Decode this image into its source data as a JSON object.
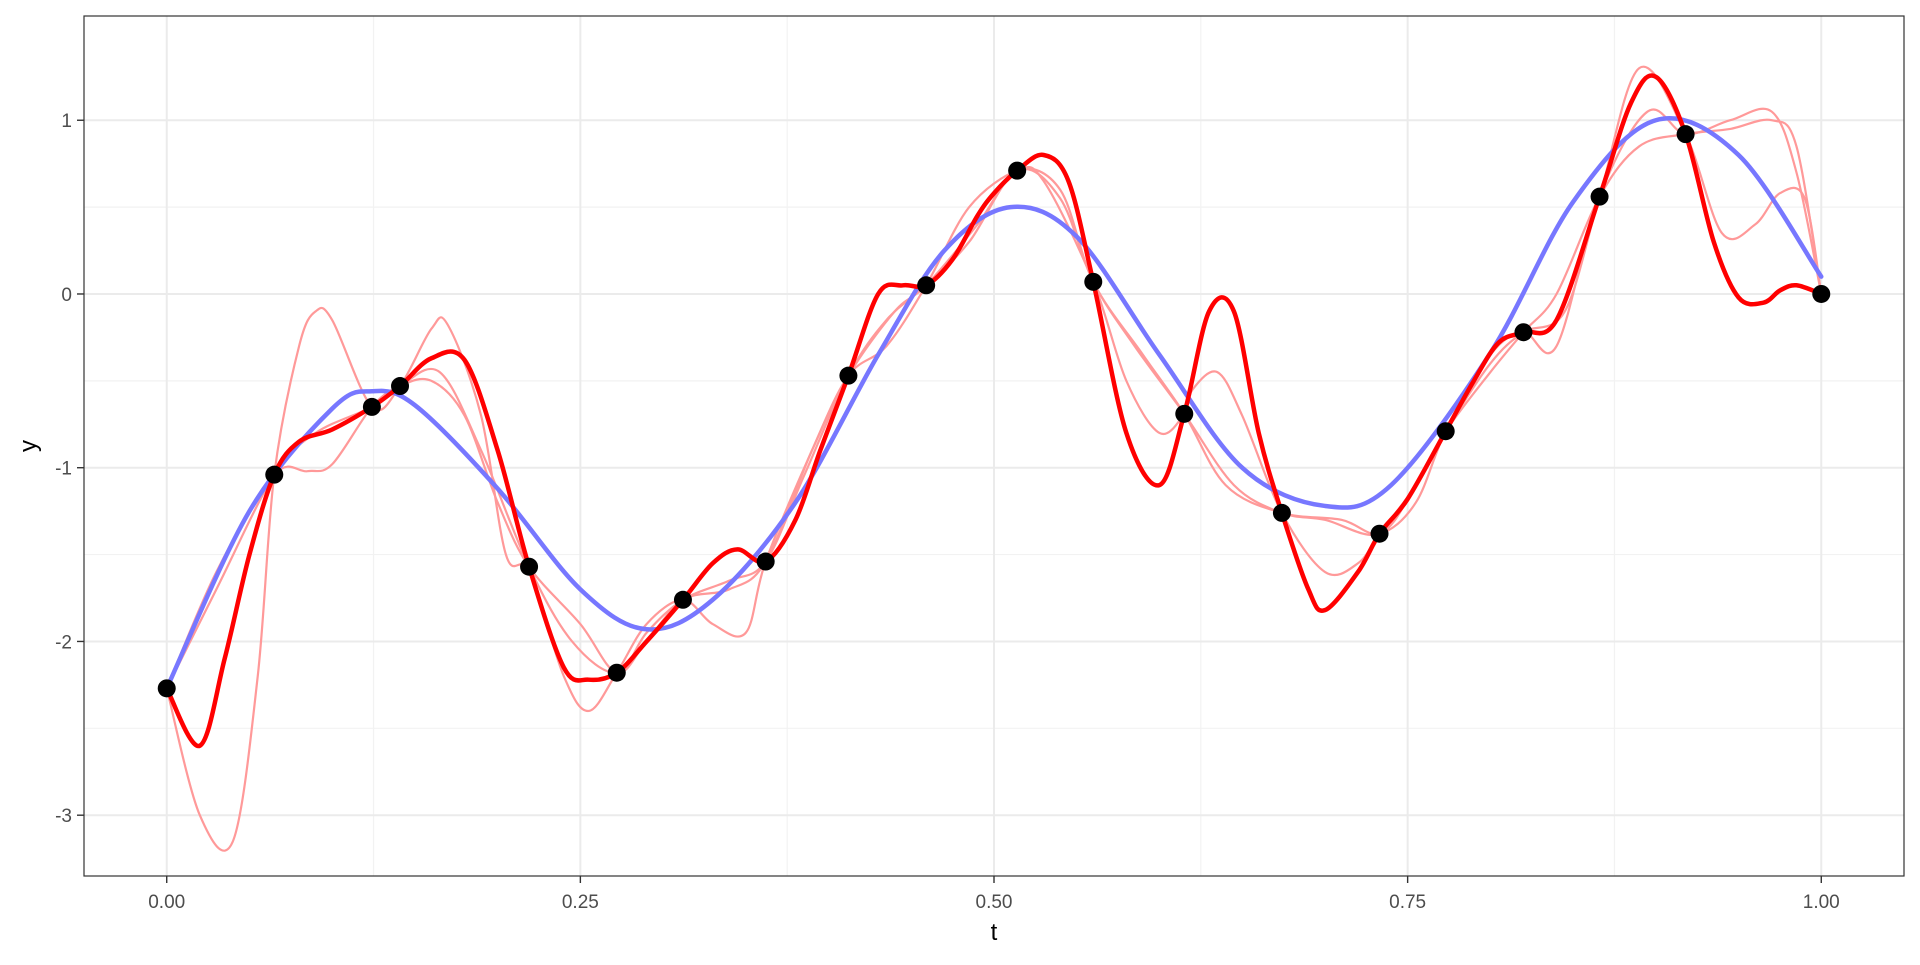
{
  "chart_data": {
    "type": "line",
    "title": "",
    "xlabel": "t",
    "ylabel": "y",
    "xlim": [
      -0.05,
      1.05
    ],
    "ylim": [
      -3.35,
      1.6
    ],
    "x_ticks": [
      0,
      0.25,
      0.5,
      0.75,
      1
    ],
    "x_tick_labels": [
      "0.00",
      "0.25",
      "0.50",
      "0.75",
      "1.00"
    ],
    "y_ticks": [
      -3,
      -2,
      -1,
      0,
      1
    ],
    "y_tick_labels": [
      "-3",
      "-2",
      "-1",
      "0",
      "1"
    ],
    "grid": true,
    "legend": "none",
    "colors": {
      "background": "#ffffff",
      "panel_border": "#333333",
      "grid_major": "#ebebeb",
      "grid_minor": "#f2f2f2",
      "true_function": "#7777ff",
      "sample_paths": "#ff9999",
      "highlight_path": "#ff0000",
      "points": "#000000"
    },
    "points": {
      "x": [
        0.0,
        0.065,
        0.124,
        0.141,
        0.219,
        0.272,
        0.312,
        0.362,
        0.412,
        0.459,
        0.514,
        0.56,
        0.615,
        0.674,
        0.733,
        0.773,
        0.82,
        0.866,
        0.918,
        1.0
      ],
      "y": [
        -2.27,
        -1.04,
        -0.65,
        -0.53,
        -1.57,
        -2.18,
        -1.76,
        -1.54,
        -0.47,
        0.05,
        0.71,
        0.07,
        -0.69,
        -1.26,
        -1.38,
        -0.79,
        -0.22,
        0.56,
        0.92,
        0.0
      ]
    },
    "true_function": {
      "x": [
        0.0,
        0.05,
        0.1,
        0.124,
        0.15,
        0.2,
        0.25,
        0.29,
        0.33,
        0.38,
        0.43,
        0.47,
        0.51,
        0.55,
        0.6,
        0.65,
        0.7,
        0.74,
        0.8,
        0.85,
        0.9,
        0.95,
        1.0
      ],
      "y": [
        -2.27,
        -1.25,
        -0.66,
        -0.56,
        -0.64,
        -1.12,
        -1.7,
        -1.93,
        -1.76,
        -1.2,
        -0.35,
        0.25,
        0.5,
        0.33,
        -0.35,
        -1.0,
        -1.22,
        -1.1,
        -0.34,
        0.53,
        1.0,
        0.8,
        0.1
      ]
    },
    "series": [
      {
        "x": [
          0.0,
          0.02,
          0.035,
          0.05,
          0.065,
          0.08,
          0.1,
          0.124,
          0.141,
          0.16,
          0.18,
          0.2,
          0.219,
          0.24,
          0.255,
          0.272,
          0.29,
          0.312,
          0.33,
          0.345,
          0.362,
          0.38,
          0.395,
          0.412,
          0.43,
          0.445,
          0.459,
          0.475,
          0.49,
          0.5,
          0.514,
          0.53,
          0.545,
          0.56,
          0.58,
          0.6,
          0.615,
          0.63,
          0.645,
          0.66,
          0.674,
          0.69,
          0.7,
          0.72,
          0.733,
          0.75,
          0.773,
          0.79,
          0.805,
          0.82,
          0.84,
          0.866,
          0.885,
          0.9,
          0.918,
          0.935,
          0.95,
          0.965,
          0.975,
          0.985,
          1.0
        ],
        "y": [
          -2.27,
          -2.6,
          -2.1,
          -1.5,
          -1.04,
          -0.85,
          -0.78,
          -0.65,
          -0.53,
          -0.37,
          -0.38,
          -0.9,
          -1.57,
          -2.15,
          -2.22,
          -2.18,
          -2.0,
          -1.76,
          -1.55,
          -1.47,
          -1.54,
          -1.3,
          -0.9,
          -0.47,
          0.0,
          0.05,
          0.05,
          0.2,
          0.45,
          0.58,
          0.71,
          0.8,
          0.65,
          0.07,
          -0.8,
          -1.1,
          -0.69,
          -0.1,
          -0.1,
          -0.8,
          -1.26,
          -1.7,
          -1.82,
          -1.6,
          -1.38,
          -1.18,
          -0.79,
          -0.5,
          -0.28,
          -0.22,
          -0.15,
          0.56,
          1.1,
          1.25,
          0.92,
          0.3,
          -0.02,
          -0.05,
          0.02,
          0.05,
          0.0
        ]
      },
      {
        "x": [
          0.0,
          0.02,
          0.04,
          0.055,
          0.065,
          0.08,
          0.09,
          0.1,
          0.124,
          0.141,
          0.16,
          0.17,
          0.19,
          0.205,
          0.219,
          0.24,
          0.255,
          0.272,
          0.29,
          0.312,
          0.33,
          0.35,
          0.362,
          0.39,
          0.412,
          0.435,
          0.459,
          0.485,
          0.514,
          0.53,
          0.56,
          0.58,
          0.6,
          0.615,
          0.62,
          0.635,
          0.65,
          0.674,
          0.7,
          0.72,
          0.733,
          0.755,
          0.773,
          0.8,
          0.82,
          0.845,
          0.866,
          0.89,
          0.918,
          0.94,
          0.96,
          0.975,
          0.99,
          1.0
        ],
        "y": [
          -2.27,
          -3.0,
          -3.15,
          -2.2,
          -1.04,
          -0.3,
          -0.1,
          -0.15,
          -0.65,
          -0.53,
          -0.2,
          -0.18,
          -0.7,
          -1.5,
          -1.6,
          -2.2,
          -2.4,
          -2.18,
          -1.9,
          -1.76,
          -1.9,
          -1.95,
          -1.54,
          -0.9,
          -0.47,
          -0.3,
          0.05,
          0.5,
          0.71,
          0.65,
          0.07,
          -0.5,
          -0.8,
          -0.69,
          -0.55,
          -0.45,
          -0.7,
          -1.26,
          -1.6,
          -1.55,
          -1.38,
          -1.1,
          -0.79,
          -0.4,
          -0.22,
          -0.1,
          0.56,
          1.3,
          0.92,
          0.35,
          0.4,
          0.58,
          0.55,
          0.0
        ]
      },
      {
        "x": [
          0.0,
          0.03,
          0.065,
          0.085,
          0.1,
          0.124,
          0.141,
          0.16,
          0.18,
          0.2,
          0.219,
          0.25,
          0.272,
          0.29,
          0.312,
          0.34,
          0.362,
          0.39,
          0.412,
          0.44,
          0.459,
          0.49,
          0.514,
          0.54,
          0.56,
          0.59,
          0.615,
          0.64,
          0.674,
          0.71,
          0.733,
          0.755,
          0.773,
          0.8,
          0.82,
          0.84,
          0.866,
          0.895,
          0.918,
          0.945,
          0.97,
          0.985,
          1.0
        ],
        "y": [
          -2.27,
          -1.6,
          -1.04,
          -1.02,
          -0.98,
          -0.65,
          -0.53,
          -0.5,
          -0.7,
          -1.2,
          -1.57,
          -1.9,
          -2.18,
          -2.0,
          -1.76,
          -1.7,
          -1.54,
          -0.9,
          -0.47,
          -0.1,
          0.05,
          0.4,
          0.71,
          0.6,
          0.07,
          -0.35,
          -0.69,
          -1.1,
          -1.26,
          -1.3,
          -1.38,
          -1.2,
          -0.79,
          -0.35,
          -0.22,
          -0.3,
          0.56,
          1.05,
          0.92,
          1.0,
          1.05,
          0.7,
          0.0
        ]
      },
      {
        "x": [
          0.0,
          0.03,
          0.065,
          0.09,
          0.124,
          0.141,
          0.165,
          0.19,
          0.219,
          0.245,
          0.272,
          0.29,
          0.312,
          0.34,
          0.362,
          0.385,
          0.412,
          0.435,
          0.459,
          0.485,
          0.514,
          0.54,
          0.56,
          0.585,
          0.615,
          0.645,
          0.674,
          0.7,
          0.733,
          0.755,
          0.773,
          0.8,
          0.82,
          0.84,
          0.866,
          0.89,
          0.918,
          0.945,
          0.97,
          0.985,
          1.0
        ],
        "y": [
          -2.27,
          -1.7,
          -1.04,
          -0.8,
          -0.65,
          -0.53,
          -0.45,
          -0.9,
          -1.57,
          -2.0,
          -2.18,
          -1.95,
          -1.76,
          -1.65,
          -1.54,
          -1.05,
          -0.47,
          -0.15,
          0.05,
          0.3,
          0.71,
          0.55,
          0.07,
          -0.3,
          -0.69,
          -1.1,
          -1.26,
          -1.3,
          -1.38,
          -1.1,
          -0.79,
          -0.45,
          -0.22,
          0.0,
          0.56,
          0.85,
          0.92,
          0.95,
          1.0,
          0.85,
          0.0
        ]
      }
    ],
    "highlight_series_index": 0
  }
}
